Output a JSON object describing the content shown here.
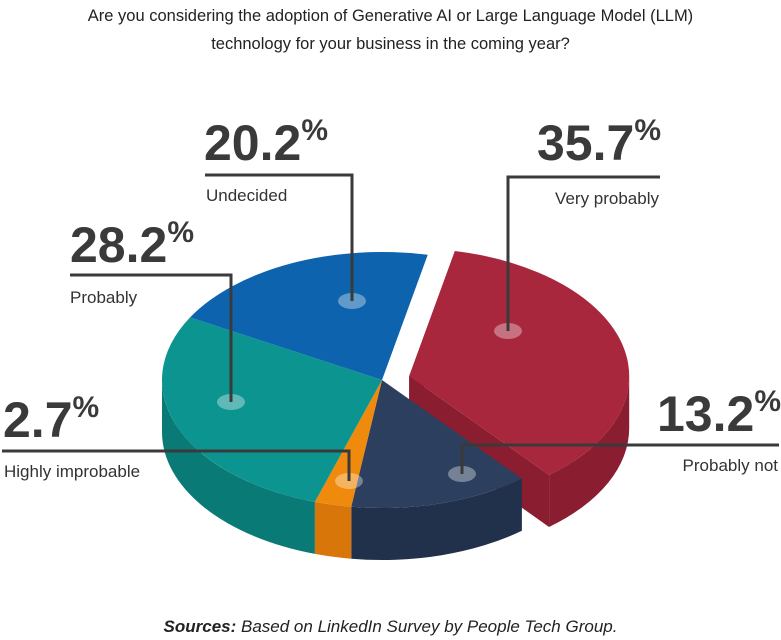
{
  "title_lines": [
    "Are you considering the adoption of Generative AI or Large Language Model (LLM)",
    "technology for your business in the coming year?"
  ],
  "source": {
    "prefix": "Sources:",
    "text": " Based on LinkedIn Survey by People Tech Group."
  },
  "chart_data": {
    "type": "pie",
    "title": "Are you considering the adoption of Generative AI or Large Language Model (LLM) technology for your business in the coming year?",
    "unit": "%",
    "slices": [
      {
        "label": "Very probably",
        "value": 35.7,
        "display": "35.7",
        "color": "#a8273c",
        "side": "#8a1e30",
        "exploded": true
      },
      {
        "label": "Probably not",
        "value": 13.2,
        "display": "13.2",
        "color": "#2c3f5e",
        "side": "#22314b",
        "exploded": false
      },
      {
        "label": "Highly improbable",
        "value": 2.7,
        "display": "2.7",
        "color": "#f08a0c",
        "side": "#d9760a",
        "exploded": false
      },
      {
        "label": "Probably",
        "value": 28.2,
        "display": "28.2",
        "color": "#0c9490",
        "side": "#0a7a77",
        "exploded": false
      },
      {
        "label": "Undecided",
        "value": 20.2,
        "display": "20.2",
        "color": "#0d63ad",
        "side": "#0a4f8c",
        "exploded": false
      }
    ]
  }
}
